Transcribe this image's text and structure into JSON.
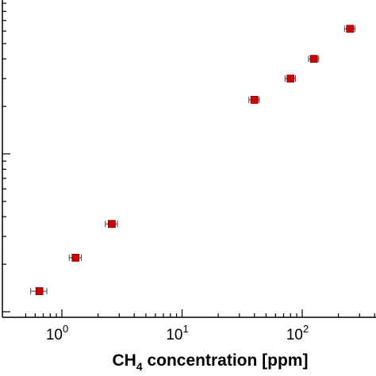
{
  "chart_data": {
    "type": "scatter",
    "title": "",
    "xlabel": {
      "main": "CH",
      "subscript": "4",
      "rest": " concentration  [ppm]"
    },
    "ylabel": "",
    "x_scale": "log",
    "xlim": [
      0.45,
      450
    ],
    "x_ticks": [
      {
        "base": "10",
        "exp": "0",
        "value": 1
      },
      {
        "base": "10",
        "exp": "1",
        "value": 10
      },
      {
        "base": "10",
        "exp": "2",
        "value": 100
      }
    ],
    "y_scale": "log",
    "ylim": [
      0.8,
      100
    ],
    "grid": false,
    "legend": "none",
    "marker_color": "#cc0000",
    "series": [
      {
        "points": [
          {
            "x": 0.65,
            "y": 1.35,
            "x_err": 0.1
          },
          {
            "x": 1.3,
            "y": 2.2,
            "x_err": 0.15
          },
          {
            "x": 2.6,
            "y": 3.6,
            "x_err": 0.3
          },
          {
            "x": 40,
            "y": 22,
            "x_err": 4
          },
          {
            "x": 80,
            "y": 30,
            "x_err": 8
          },
          {
            "x": 125,
            "y": 40,
            "x_err": 12
          },
          {
            "x": 250,
            "y": 62,
            "x_err": 25
          }
        ]
      }
    ]
  }
}
